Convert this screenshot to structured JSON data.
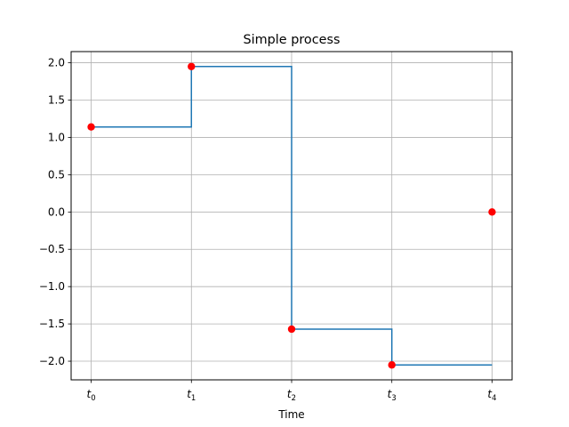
{
  "chart_data": {
    "type": "line",
    "title": "Simple process",
    "xlabel": "Time",
    "ylabel": "",
    "x_ticks": [
      {
        "base": "t",
        "sub": "0",
        "value": 0
      },
      {
        "base": "t",
        "sub": "1",
        "value": 1
      },
      {
        "base": "t",
        "sub": "2",
        "value": 2
      },
      {
        "base": "t",
        "sub": "3",
        "value": 3
      },
      {
        "base": "t",
        "sub": "4",
        "value": 4
      }
    ],
    "y_ticks": [
      "−2.0",
      "−1.5",
      "−1.0",
      "−0.5",
      "0.0",
      "0.5",
      "1.0",
      "1.5",
      "2.0"
    ],
    "y_tick_values": [
      -2.0,
      -1.5,
      -1.0,
      -0.5,
      0.0,
      0.5,
      1.0,
      1.5,
      2.0
    ],
    "xlim": [
      -0.2,
      4.2
    ],
    "ylim": [
      -2.25,
      2.15
    ],
    "grid": true,
    "step_series": {
      "x": [
        0,
        1,
        2,
        3,
        4
      ],
      "y": [
        1.14,
        1.95,
        -1.57,
        -2.05,
        -2.05
      ],
      "color": "#1f77b4"
    },
    "point_series": {
      "x": [
        0,
        1,
        2,
        3,
        4
      ],
      "y": [
        1.14,
        1.95,
        -1.57,
        -2.05,
        0.0
      ],
      "color": "#ff0000"
    }
  }
}
